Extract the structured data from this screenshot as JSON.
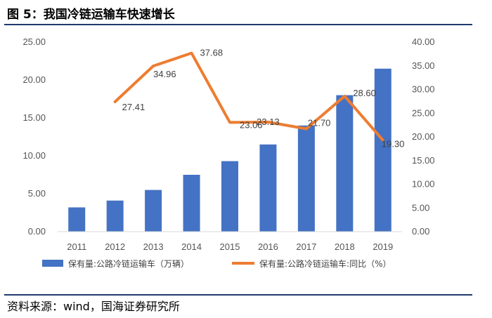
{
  "header": {
    "title": "图 5：我国冷链运输车快速增长"
  },
  "colors": {
    "bar": "#4472c4",
    "line": "#ed7d31",
    "rule": "#1f3a6e",
    "axis_text": "#555555"
  },
  "chart_data": {
    "type": "bar+line",
    "title": "",
    "categories": [
      "2011",
      "2012",
      "2013",
      "2014",
      "2015",
      "2016",
      "2017",
      "2018",
      "2019"
    ],
    "series": [
      {
        "name": "保有量:公路冷链运输车（万辆）",
        "type": "bar",
        "axis": "left",
        "values": [
          3.2,
          4.1,
          5.5,
          7.5,
          9.3,
          11.5,
          14.0,
          18.0,
          21.5
        ]
      },
      {
        "name": "保有量:公路冷链运输车:同比（%）",
        "type": "line",
        "axis": "right",
        "values": [
          null,
          27.41,
          34.96,
          37.68,
          23.06,
          23.13,
          21.7,
          28.6,
          19.3
        ],
        "labels": [
          "",
          "27.41",
          "34.96",
          "37.68",
          "23.06",
          "23.13",
          "21.70",
          "28.60",
          "19.30"
        ]
      }
    ],
    "y_left": {
      "min": 0,
      "max": 25,
      "step": 5,
      "tick_labels": [
        "0.00",
        "5.00",
        "10.00",
        "15.00",
        "20.00",
        "25.00"
      ]
    },
    "y_right": {
      "min": 0,
      "max": 40,
      "step": 5,
      "tick_labels": [
        "0.00",
        "5.00",
        "10.00",
        "15.00",
        "20.00",
        "25.00",
        "30.00",
        "35.00",
        "40.00"
      ]
    },
    "grid": false,
    "legend_position": "bottom"
  },
  "source": {
    "text": "资料来源：wind，国海证券研究所"
  }
}
